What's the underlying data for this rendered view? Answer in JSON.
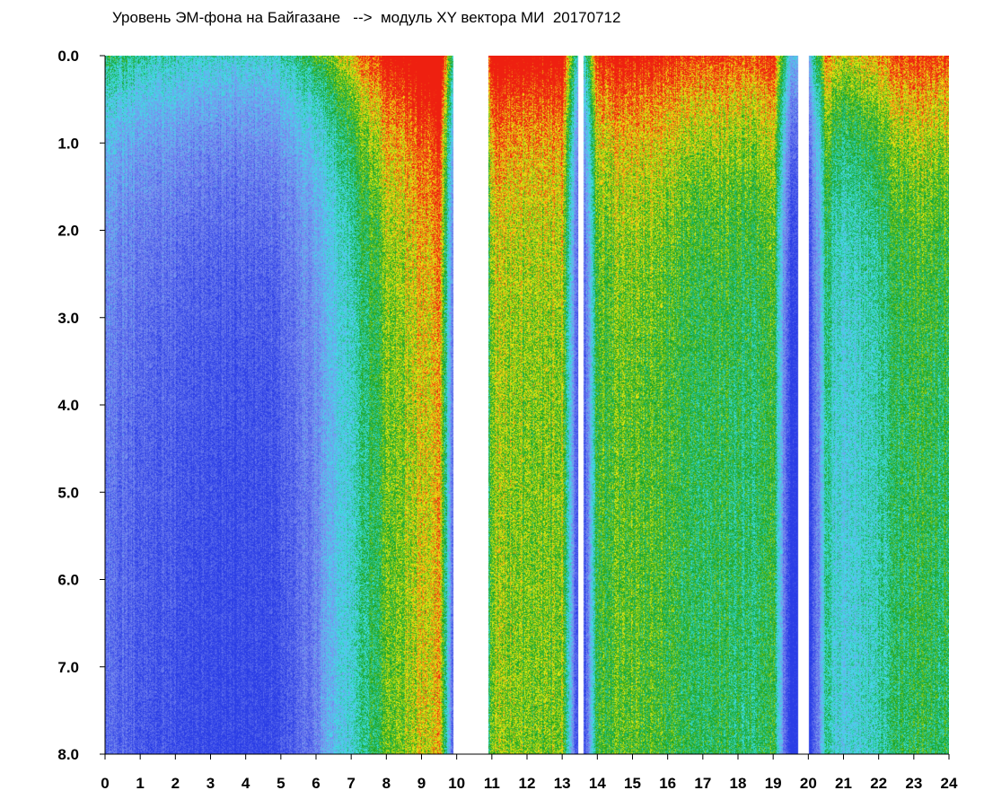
{
  "chart_data": {
    "type": "heatmap",
    "title": "Уровень ЭМ-фона на Байгазане   -->  модуль XY вектора МИ  20170712",
    "xlabel": "",
    "ylabel": "",
    "xlim": [
      0,
      24
    ],
    "ylim": [
      0,
      8
    ],
    "y_inverted": true,
    "x_ticks": [
      "0",
      "1",
      "2",
      "3",
      "4",
      "5",
      "6",
      "7",
      "8",
      "9",
      "10",
      "11",
      "12",
      "13",
      "14",
      "15",
      "16",
      "17",
      "18",
      "19",
      "20",
      "21",
      "22",
      "23",
      "24"
    ],
    "y_ticks": [
      "0.0",
      "1.0",
      "2.0",
      "3.0",
      "4.0",
      "5.0",
      "6.0",
      "7.0",
      "8.0"
    ],
    "grid": false,
    "colors": {
      "low": "#2a3de6",
      "low_mid": "#7f8ff0",
      "mid": "#40e0e8",
      "mid_high": "#12a020",
      "high": "#f2ee12",
      "highest": "#ee2010",
      "background": "#ffffff"
    },
    "hourly_profile": {
      "hours": [
        0.0,
        0.5,
        1.0,
        1.5,
        2.0,
        2.5,
        3.0,
        3.5,
        4.0,
        4.5,
        5.0,
        5.5,
        6.0,
        6.5,
        7.0,
        7.5,
        8.0,
        8.5,
        9.0,
        9.5,
        10.0,
        10.5,
        11.0,
        11.5,
        12.0,
        12.5,
        13.0,
        13.5,
        14.0,
        14.5,
        15.0,
        15.5,
        16.0,
        16.5,
        17.0,
        17.5,
        18.0,
        18.5,
        19.0,
        19.5,
        20.0,
        20.5,
        21.0,
        21.5,
        22.0,
        22.5,
        23.0,
        23.5,
        24.0
      ],
      "level": [
        0.22,
        0.2,
        0.17,
        0.15,
        0.13,
        0.12,
        0.1,
        0.09,
        0.1,
        0.11,
        0.14,
        0.2,
        0.28,
        0.36,
        0.45,
        0.55,
        0.65,
        0.7,
        0.75,
        0.8,
        0.0,
        0.0,
        0.72,
        0.7,
        0.68,
        0.68,
        0.7,
        0.0,
        0.62,
        0.64,
        0.66,
        0.64,
        0.62,
        0.6,
        0.58,
        0.57,
        0.56,
        0.56,
        0.62,
        0.0,
        0.0,
        0.5,
        0.42,
        0.45,
        0.5,
        0.56,
        0.6,
        0.58,
        0.58
      ]
    },
    "gaps": [
      {
        "from": 9.9,
        "to": 10.9
      },
      {
        "from": 13.45,
        "to": 13.6
      },
      {
        "from": 19.7,
        "to": 20.0
      }
    ]
  }
}
